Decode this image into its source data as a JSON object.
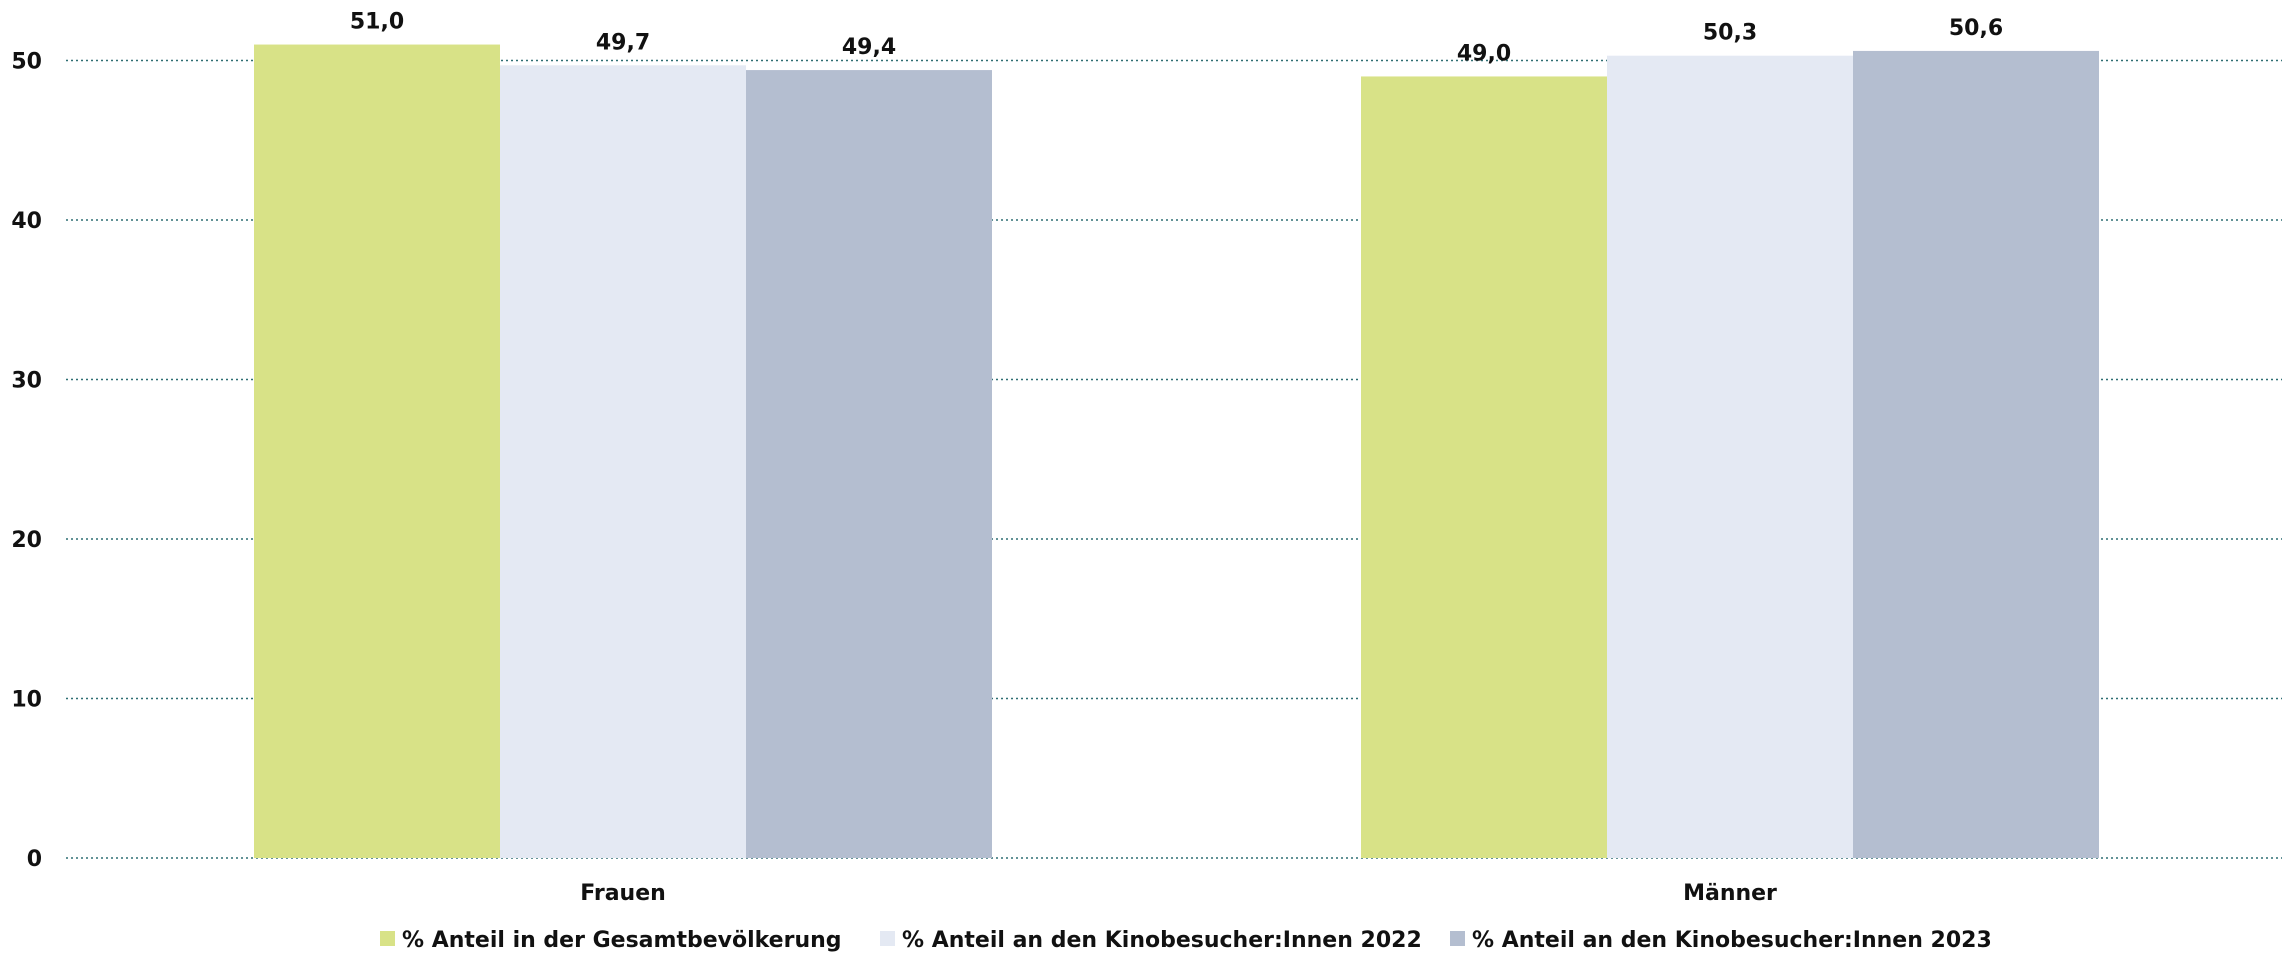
{
  "chart_data": {
    "type": "bar",
    "categories": [
      "Frauen",
      "Männer"
    ],
    "series": [
      {
        "name": "% Anteil in der Gesamtbevölkerung",
        "values": [
          51.0,
          49.0
        ],
        "color": "#d8e287",
        "labels": [
          "51,0",
          "49,0"
        ]
      },
      {
        "name": "% Anteil an den Kinobesucher:Innen 2022",
        "values": [
          49.7,
          50.3
        ],
        "color": "#e4e9f3",
        "labels": [
          "49,7",
          "50,3"
        ]
      },
      {
        "name": "% Anteil an den Kinobesucher:Innen 2023",
        "values": [
          49.4,
          50.6
        ],
        "color": "#b4bed0",
        "labels": [
          "49,4",
          "50,6"
        ]
      }
    ],
    "title": "",
    "xlabel": "",
    "ylabel": "",
    "ylim": [
      0,
      50
    ],
    "yticks": [
      0,
      10,
      20,
      30,
      40,
      50
    ],
    "grid": true,
    "legend_position": "bottom"
  }
}
